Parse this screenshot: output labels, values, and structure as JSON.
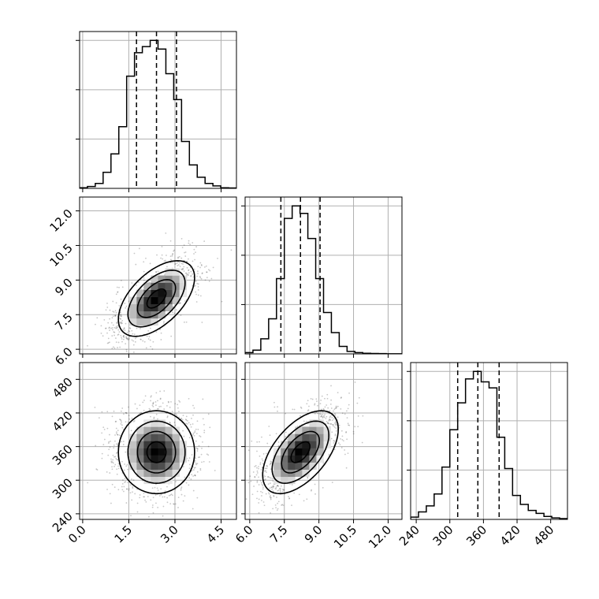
{
  "chart_data": {
    "type": "corner",
    "grid": true,
    "parameters": [
      {
        "key": "p0",
        "range": [
          -0.1,
          5.0
        ],
        "ticks": [
          0.0,
          1.5,
          3.0,
          4.5
        ],
        "tick_labels": [
          "0.0",
          "1.5",
          "3.0",
          "4.5"
        ],
        "mean": 2.4,
        "sd": 0.62,
        "quantile_lines": [
          1.75,
          2.4,
          3.05
        ],
        "hist_bin_edges": [
          -0.1,
          0.155,
          0.41,
          0.665,
          0.92,
          1.175,
          1.43,
          1.685,
          1.94,
          2.195,
          2.45,
          2.705,
          2.96,
          3.215,
          3.47,
          3.725,
          3.98,
          4.235,
          4.49,
          4.745,
          5.0
        ],
        "hist_counts": [
          0.5,
          1.5,
          4,
          13,
          28,
          50,
          91,
          110,
          115,
          120,
          113,
          93,
          72,
          38,
          19,
          9,
          4,
          2,
          0.5,
          0.3
        ],
        "hist_ticks": [
          1,
          2,
          3
        ]
      },
      {
        "key": "p1",
        "range": [
          5.8,
          12.6
        ],
        "ticks": [
          6.0,
          7.5,
          9.0,
          10.5,
          12.0
        ],
        "tick_labels": [
          "6.0",
          "7.5",
          "9.0",
          "10.5",
          "12.0"
        ],
        "mean": 8.2,
        "sd": 0.82,
        "quantile_lines": [
          7.35,
          8.2,
          9.05
        ],
        "hist_bin_edges": [
          5.8,
          6.14,
          6.48,
          6.82,
          7.16,
          7.5,
          7.84,
          8.18,
          8.52,
          8.86,
          9.2,
          9.54,
          9.88,
          10.22,
          10.56,
          10.9,
          11.24,
          11.58,
          11.92,
          12.26,
          12.6
        ],
        "hist_counts": [
          1,
          3,
          12,
          28,
          60,
          108,
          118,
          112,
          92,
          60,
          33,
          17,
          6,
          2,
          1,
          0.5,
          0.3,
          0.2,
          0.1,
          0.1
        ],
        "hist_ticks": [
          1,
          2,
          3
        ]
      },
      {
        "key": "p2",
        "range": [
          230,
          510
        ],
        "ticks": [
          240,
          300,
          360,
          420,
          480
        ],
        "tick_labels": [
          "240",
          "300",
          "360",
          "420",
          "480"
        ],
        "mean": 350,
        "sd": 37,
        "quantile_lines": [
          314,
          350,
          388
        ],
        "hist_bin_edges": [
          230,
          244,
          258,
          272,
          286,
          300,
          314,
          328,
          342,
          356,
          370,
          384,
          398,
          412,
          426,
          440,
          454,
          468,
          482,
          496,
          510
        ],
        "hist_counts": [
          1.5,
          5,
          9,
          17,
          35,
          60,
          78,
          94,
          99,
          92,
          88,
          55,
          34,
          16,
          10,
          6,
          4,
          2,
          1,
          0.5
        ],
        "hist_ticks": [
          1,
          2,
          3
        ]
      }
    ],
    "correlations": {
      "p1_p0": 0.55,
      "p2_p0": 0.0,
      "p2_p1": 0.55
    },
    "contour_levels_sigma": [
      0.5,
      1.0,
      1.5,
      2.0
    ]
  }
}
